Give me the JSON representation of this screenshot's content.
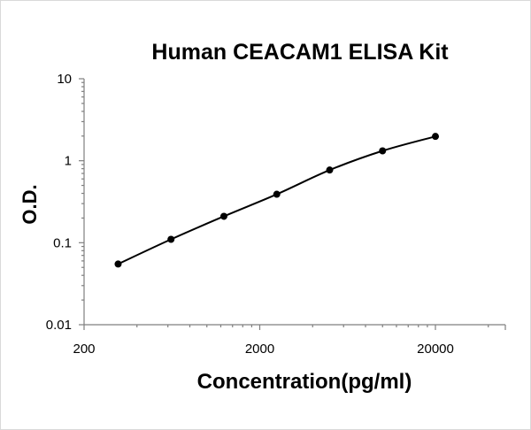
{
  "chart_data": {
    "type": "line",
    "title": "Human CEACAM1 ELISA Kit",
    "xlabel": "Concentration(pg/ml)",
    "ylabel": "O.D.",
    "x_scale": "log",
    "y_scale": "log",
    "xlim": [
      200,
      50000
    ],
    "ylim": [
      0.01,
      10
    ],
    "x_ticks": [
      "200",
      "2000",
      "20000"
    ],
    "y_ticks": [
      "0.01",
      "0.1",
      "1",
      "10"
    ],
    "grid": false,
    "series": [
      {
        "x": [
          312.5,
          625,
          1250,
          2500,
          5000,
          10000,
          20000
        ],
        "y": [
          0.055,
          0.11,
          0.21,
          0.39,
          0.77,
          1.32,
          1.98
        ]
      }
    ]
  }
}
